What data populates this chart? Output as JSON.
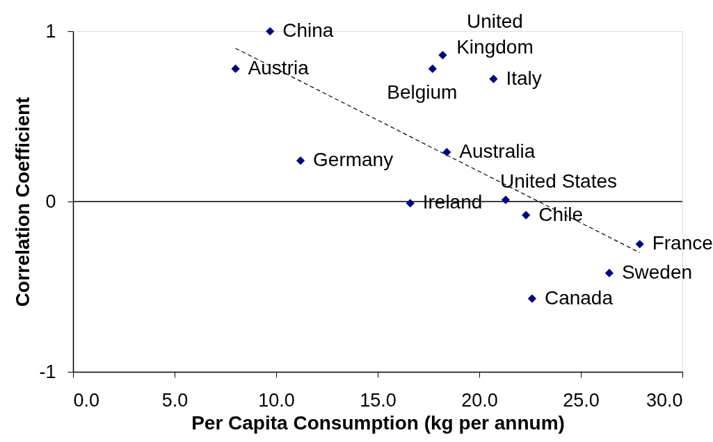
{
  "chart_data": {
    "type": "scatter",
    "xlabel": "Per Capita Consumption (kg per annum)",
    "ylabel": "Correlation Coefficient",
    "xlim": [
      0,
      30
    ],
    "ylim": [
      -1,
      1
    ],
    "xticks": [
      {
        "value": 0,
        "label": "0.0"
      },
      {
        "value": 5,
        "label": "5.0"
      },
      {
        "value": 10,
        "label": "10.0"
      },
      {
        "value": 15,
        "label": "15.0"
      },
      {
        "value": 20,
        "label": "20.0"
      },
      {
        "value": 25,
        "label": "25.0"
      },
      {
        "value": 30,
        "label": "30.0"
      }
    ],
    "yticks": [
      -1,
      0,
      1
    ],
    "grid": false,
    "marker": "diamond",
    "series": [
      {
        "color": "#000080",
        "x": [
          9.7,
          8.0,
          11.2,
          18.2,
          17.7,
          20.7,
          18.4,
          21.3,
          16.6,
          22.3,
          27.9,
          26.4,
          22.6
        ],
        "values": [
          1.0,
          0.78,
          0.24,
          0.86,
          0.78,
          0.72,
          0.29,
          0.01,
          -0.01,
          -0.08,
          -0.25,
          -0.42,
          -0.57
        ]
      },
      {
        "type": "line",
        "color": "#000000",
        "line_style": "dashed",
        "marker": "none",
        "x": [
          8.0,
          27.9
        ],
        "values": [
          0.9,
          -0.3
        ]
      }
    ],
    "ref_lines": [
      {
        "axis": "y",
        "value": 0,
        "color": "#000000"
      }
    ],
    "annotations": [
      {
        "text": "China",
        "x": 9.7,
        "y": 1.0
      },
      {
        "text": "Austria",
        "x": 8.0,
        "y": 0.78
      },
      {
        "text": "Germany",
        "x": 11.2,
        "y": 0.24
      },
      {
        "text": "United Kingdom",
        "x": 18.2,
        "y": 0.86
      },
      {
        "text": "Belgium",
        "x": 17.7,
        "y": 0.78
      },
      {
        "text": "Italy",
        "x": 20.7,
        "y": 0.72
      },
      {
        "text": "Australia",
        "x": 18.4,
        "y": 0.29
      },
      {
        "text": "United States",
        "x": 21.3,
        "y": 0.01
      },
      {
        "text": "Ireland",
        "x": 16.6,
        "y": -0.01
      },
      {
        "text": "Chile",
        "x": 22.3,
        "y": -0.08
      },
      {
        "text": "France",
        "x": 27.9,
        "y": -0.25
      },
      {
        "text": "Sweden",
        "x": 26.4,
        "y": -0.42
      },
      {
        "text": "Canada",
        "x": 22.6,
        "y": -0.57
      }
    ]
  }
}
